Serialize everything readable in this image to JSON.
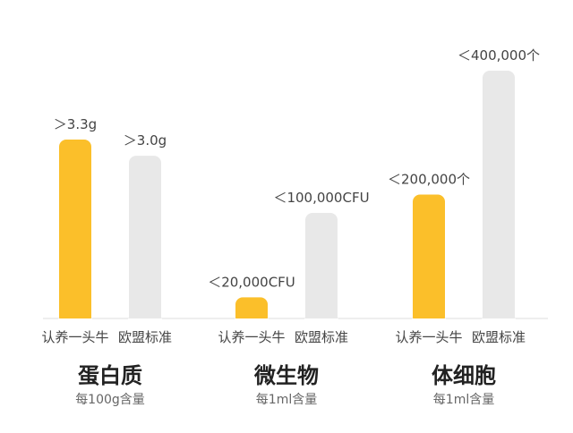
{
  "colors": {
    "ours": "#FBBF2A",
    "eu": "#E8E8E8",
    "axis": "#DDDDDD",
    "label": "#444444",
    "title": "#222222",
    "unit": "#666666"
  },
  "chart_data": {
    "type": "bar",
    "title": "",
    "legend": "none",
    "grid": false,
    "groups": [
      {
        "title": "蛋白质",
        "unit_note": "每100g含量",
        "bars": [
          {
            "series": "认养一头牛",
            "label": "＞3.3g",
            "value": 3.3
          },
          {
            "series": "欧盟标准",
            "label": "＞3.0g",
            "value": 3.0
          }
        ]
      },
      {
        "title": "微生物",
        "unit_note": "每1ml含量",
        "bars": [
          {
            "series": "认养一头牛",
            "label": "＜20,000CFU",
            "value": 20000
          },
          {
            "series": "欧盟标准",
            "label": "＜100,000CFU",
            "value": 100000
          }
        ]
      },
      {
        "title": "体细胞",
        "unit_note": "每1ml含量",
        "bars": [
          {
            "series": "认养一头牛",
            "label": "＜200,000个",
            "value": 200000
          },
          {
            "series": "欧盟标准",
            "label": "＜400,000个",
            "value": 400000
          }
        ]
      }
    ]
  }
}
